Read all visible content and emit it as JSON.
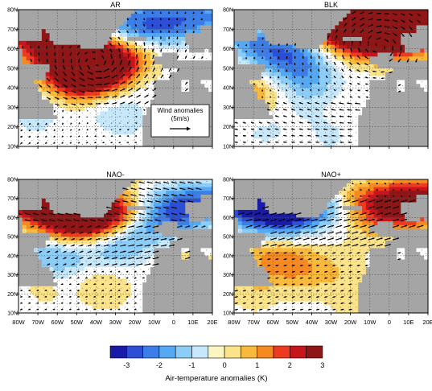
{
  "chart_data": {
    "type": "heatmap",
    "description_panels": 4,
    "panels": [
      {
        "title": "AR",
        "anomalies": [
          {
            "lon": -45,
            "lat": 47,
            "value": 2.8
          },
          {
            "lon": -38,
            "lat": 50,
            "value": 2.2
          },
          {
            "lon": -55,
            "lat": 52,
            "value": 1.5
          },
          {
            "lon": -60,
            "lat": 66,
            "value": 1.6
          },
          {
            "lon": -72,
            "lat": 70,
            "value": 1.3
          },
          {
            "lon": -30,
            "lat": 57,
            "value": 1.2
          },
          {
            "lon": -20,
            "lat": 71,
            "value": -2.0
          },
          {
            "lon": -10,
            "lat": 75,
            "value": -1.4
          },
          {
            "lon": -40,
            "lat": 35,
            "value": -0.6
          },
          {
            "lon": -70,
            "lat": 28,
            "value": -0.5
          },
          {
            "lon": -25,
            "lat": 25,
            "value": -0.4
          },
          {
            "lon": -55,
            "lat": 40,
            "value": 0.6
          }
        ],
        "legend_box": {
          "label": "Wind anomalies",
          "sublabel": "(5m/s)"
        }
      },
      {
        "title": "BLK",
        "anomalies": [
          {
            "lon": -12,
            "lat": 72,
            "value": 3.0
          },
          {
            "lon": 0,
            "lat": 68,
            "value": 2.6
          },
          {
            "lon": 10,
            "lat": 73,
            "value": 2.0
          },
          {
            "lon": -25,
            "lat": 64,
            "value": 1.2
          },
          {
            "lon": -50,
            "lat": 55,
            "value": -1.8
          },
          {
            "lon": -62,
            "lat": 66,
            "value": -1.4
          },
          {
            "lon": -40,
            "lat": 42,
            "value": -1.0
          },
          {
            "lon": -70,
            "lat": 36,
            "value": 1.3
          },
          {
            "lon": -25,
            "lat": 30,
            "value": 0.3
          },
          {
            "lon": -30,
            "lat": 18,
            "value": -0.4
          },
          {
            "lon": -65,
            "lat": 22,
            "value": -0.5
          }
        ]
      },
      {
        "title": "NAO-",
        "anomalies": [
          {
            "lon": -45,
            "lat": 62,
            "value": 3.0
          },
          {
            "lon": -78,
            "lat": 73,
            "value": 2.2
          },
          {
            "lon": -55,
            "lat": 56,
            "value": 2.0
          },
          {
            "lon": -35,
            "lat": 65,
            "value": 1.5
          },
          {
            "lon": 5,
            "lat": 70,
            "value": -2.0
          },
          {
            "lon": -5,
            "lat": 62,
            "value": -1.5
          },
          {
            "lon": -60,
            "lat": 40,
            "value": -1.8
          },
          {
            "lon": -30,
            "lat": 43,
            "value": -1.2
          },
          {
            "lon": -35,
            "lat": 25,
            "value": 0.8
          },
          {
            "lon": -65,
            "lat": 27,
            "value": 0.6
          },
          {
            "lon": 5,
            "lat": 28,
            "value": 1.2
          },
          {
            "lon": -20,
            "lat": 55,
            "value": -0.5
          }
        ]
      },
      {
        "title": "NAO+",
        "anomalies": [
          {
            "lon": -58,
            "lat": 62,
            "value": -3.0
          },
          {
            "lon": -72,
            "lat": 73,
            "value": -1.8
          },
          {
            "lon": -40,
            "lat": 66,
            "value": -1.0
          },
          {
            "lon": 0,
            "lat": 72,
            "value": 2.0
          },
          {
            "lon": 12,
            "lat": 66,
            "value": 1.6
          },
          {
            "lon": -5,
            "lat": 60,
            "value": 1.0
          },
          {
            "lon": -60,
            "lat": 40,
            "value": 1.2
          },
          {
            "lon": -45,
            "lat": 33,
            "value": 1.0
          },
          {
            "lon": -25,
            "lat": 30,
            "value": 0.5
          },
          {
            "lon": -70,
            "lat": 23,
            "value": 0.6
          },
          {
            "lon": -20,
            "lat": 16,
            "value": 0.3
          }
        ]
      }
    ],
    "x_ticks": [
      "80W",
      "70W",
      "60W",
      "50W",
      "40W",
      "30W",
      "20W",
      "10W",
      "0",
      "10E",
      "20E"
    ],
    "y_ticks": [
      "10N",
      "20N",
      "30N",
      "40N",
      "50N",
      "60N",
      "70N",
      "80N"
    ],
    "lon_range": [
      -80,
      20
    ],
    "lat_range": [
      10,
      80
    ],
    "colorbar": {
      "labels": [
        "-3",
        "-2",
        "-1",
        "0",
        "1",
        "2",
        "3"
      ],
      "title": "Air-temperature anomalies (K)",
      "colors": [
        "#1a1aa8",
        "#2c4fd6",
        "#3c7ee8",
        "#55a8f2",
        "#8ccdf7",
        "#c7e8fb",
        "#fbf6c0",
        "#fbe38a",
        "#f9b93d",
        "#f68a22",
        "#ee3b1f",
        "#c8141b",
        "#8f1616"
      ]
    },
    "colors": {
      "land": "#a5a5a5",
      "ocean_neutral": "#ffffff",
      "vector": "#000000"
    }
  }
}
